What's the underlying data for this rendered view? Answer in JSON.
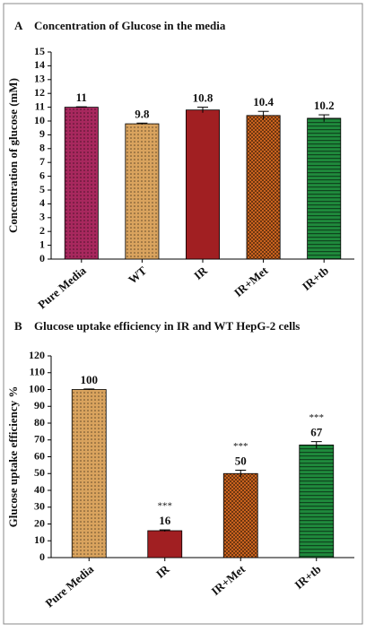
{
  "chart_data": [
    {
      "type": "bar",
      "panel_label": "A",
      "title": "Concentration of Glucose in the media",
      "ylabel": "Concentration of glucose (mM)",
      "categories": [
        "Pure Media",
        "WT",
        "IR",
        "IR+Met",
        "IR+tb"
      ],
      "values": [
        11,
        9.8,
        10.8,
        10.4,
        10.2
      ],
      "errors": [
        0.03,
        0.05,
        0.2,
        0.3,
        0.25
      ],
      "colors": [
        "#a8285e",
        "#d9a35e",
        "#a11f22",
        "#c9621e",
        "#1f8a3c"
      ],
      "patterns": [
        "dots",
        "dots",
        "none",
        "checks",
        "stripes"
      ],
      "significance": [
        null,
        null,
        null,
        null,
        null
      ],
      "ylim": [
        0,
        15
      ],
      "yticks": [
        0,
        1,
        2,
        3,
        4,
        5,
        6,
        7,
        8,
        9,
        10,
        11,
        12,
        13,
        14,
        15
      ]
    },
    {
      "type": "bar",
      "panel_label": "B",
      "title": "Glucose uptake efficiency in IR and WT HepG-2 cells",
      "ylabel": "Glucose uptake efficiency %",
      "categories": [
        "Pure Media",
        "IR",
        "IR+Met",
        "IR+tb"
      ],
      "values": [
        100,
        16,
        50,
        67
      ],
      "errors": [
        0.3,
        0.5,
        2,
        2
      ],
      "colors": [
        "#d9a35e",
        "#a11f22",
        "#c9621e",
        "#1f8a3c"
      ],
      "patterns": [
        "dots",
        "none",
        "checks",
        "stripes"
      ],
      "significance": [
        null,
        "***",
        "***",
        "***"
      ],
      "ylim": [
        0,
        120
      ],
      "yticks": [
        0,
        10,
        20,
        30,
        40,
        50,
        60,
        70,
        80,
        90,
        100,
        110,
        120
      ]
    }
  ]
}
